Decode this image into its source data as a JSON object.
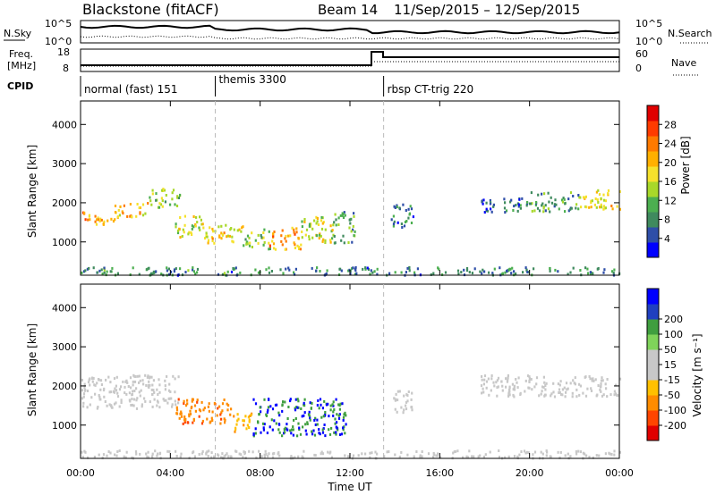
{
  "header": {
    "radar": "Blackstone (fitACF)",
    "beam": "Beam 14",
    "date_range": "11/Sep/2015 – 12/Sep/2015"
  },
  "top_panel": {
    "nsky_label": "N.Sky",
    "nsearch_label": "N.Search",
    "left_ticks": [
      "10^5",
      "10^0"
    ],
    "right_ticks": [
      "10^5",
      "10^0"
    ],
    "freq_label_1": "Freq.",
    "freq_label_2": "[MHz]",
    "freq_ticks": [
      "18",
      "8"
    ],
    "nave_label": "Nave",
    "nave_ticks": [
      "60",
      "0"
    ],
    "cpid_label": "CPID",
    "cpid_segments": [
      {
        "label": "normal (fast) 151",
        "start_hour": 0
      },
      {
        "label": "themis 3300",
        "start_hour": 6
      },
      {
        "label": "rbsp CT-trig 220",
        "start_hour": 13.5
      }
    ]
  },
  "colors": {
    "power_scale": [
      "#0000ff",
      "#2e4ea8",
      "#3f8a5e",
      "#4caf50",
      "#a8d829",
      "#f5e12c",
      "#ffb000",
      "#ff7a00",
      "#ff3b00",
      "#e00000"
    ],
    "velocity_scale": [
      "#e00000",
      "#ff4500",
      "#ff8c00",
      "#ffc000",
      "#c8c8c8",
      "#c8c8c8",
      "#7fd35a",
      "#3f9e3f",
      "#2040c0",
      "#0000ff"
    ],
    "ground_scatter": "#c8c8c8",
    "frame": "#000000"
  },
  "chart_data": [
    {
      "type": "heatmap",
      "name": "power",
      "xlabel": "",
      "ylabel": "Slant Range [km]",
      "xlim": [
        0,
        24
      ],
      "ylim": [
        150,
        4600
      ],
      "yticks": [
        1000,
        2000,
        3000,
        4000
      ],
      "colorbar_label": "Power [dB]",
      "colorbar_range": [
        0,
        32
      ],
      "colorbar_ticks": [
        4,
        8,
        12,
        16,
        20,
        24,
        28
      ],
      "dashed_vlines_hours": [
        6,
        13.5
      ],
      "bands": [
        {
          "t": [
            0,
            1.5
          ],
          "r": [
            1450,
            1800
          ],
          "v": 22
        },
        {
          "t": [
            1.5,
            3.0
          ],
          "r": [
            1650,
            2050
          ],
          "v": 20
        },
        {
          "t": [
            3.0,
            4.4
          ],
          "r": [
            1900,
            2400
          ],
          "v": 14
        },
        {
          "t": [
            4.2,
            5.4
          ],
          "r": [
            1150,
            1700
          ],
          "v": 16
        },
        {
          "t": [
            5.4,
            7.2
          ],
          "r": [
            1000,
            1500
          ],
          "v": 18
        },
        {
          "t": [
            7.2,
            8.4
          ],
          "r": [
            850,
            1350
          ],
          "v": 14
        },
        {
          "t": [
            8.4,
            9.8
          ],
          "r": [
            800,
            1400
          ],
          "v": 22
        },
        {
          "t": [
            9.8,
            11.2
          ],
          "r": [
            1000,
            1700
          ],
          "v": 16
        },
        {
          "t": [
            11.2,
            12.2
          ],
          "r": [
            1000,
            1800
          ],
          "v": 10
        },
        {
          "t": [
            13.8,
            14.8
          ],
          "r": [
            1400,
            2000
          ],
          "v": 8
        },
        {
          "t": [
            17.8,
            20.0
          ],
          "r": [
            1750,
            2150
          ],
          "v": 6
        },
        {
          "t": [
            20.0,
            22.2
          ],
          "r": [
            1800,
            2300
          ],
          "v": 10
        },
        {
          "t": [
            22.2,
            24.0
          ],
          "r": [
            1850,
            2350
          ],
          "v": 18
        },
        {
          "t": [
            0,
            24
          ],
          "r": [
            180,
            380
          ],
          "v": 8
        }
      ]
    },
    {
      "type": "heatmap",
      "name": "velocity",
      "xlabel": "Time UT",
      "ylabel": "Slant Range [km]",
      "xlim": [
        0,
        24
      ],
      "ylim": [
        150,
        4600
      ],
      "yticks": [
        1000,
        2000,
        3000,
        4000
      ],
      "xticks": [
        "00:00",
        "04:00",
        "08:00",
        "12:00",
        "16:00",
        "20:00",
        "00:00"
      ],
      "colorbar_label": "Velocity [m s⁻¹]",
      "colorbar_ticks": [
        -200,
        -100,
        -50,
        -15,
        15,
        50,
        100,
        200
      ],
      "dashed_vlines_hours": [
        6,
        13.5
      ],
      "bands": [
        {
          "t": [
            0,
            4.4
          ],
          "r": [
            1450,
            2300
          ],
          "v": 0
        },
        {
          "t": [
            4.2,
            6.8
          ],
          "r": [
            1050,
            1700
          ],
          "v": -90
        },
        {
          "t": [
            6.8,
            7.6
          ],
          "r": [
            850,
            1400
          ],
          "v": -40
        },
        {
          "t": [
            7.6,
            11.8
          ],
          "r": [
            750,
            1700
          ],
          "v": 200
        },
        {
          "t": [
            13.8,
            14.8
          ],
          "r": [
            1350,
            1900
          ],
          "v": 0
        },
        {
          "t": [
            17.8,
            24.0
          ],
          "r": [
            1750,
            2300
          ],
          "v": 0
        },
        {
          "t": [
            0,
            24
          ],
          "r": [
            180,
            380
          ],
          "v": 30
        }
      ]
    }
  ]
}
